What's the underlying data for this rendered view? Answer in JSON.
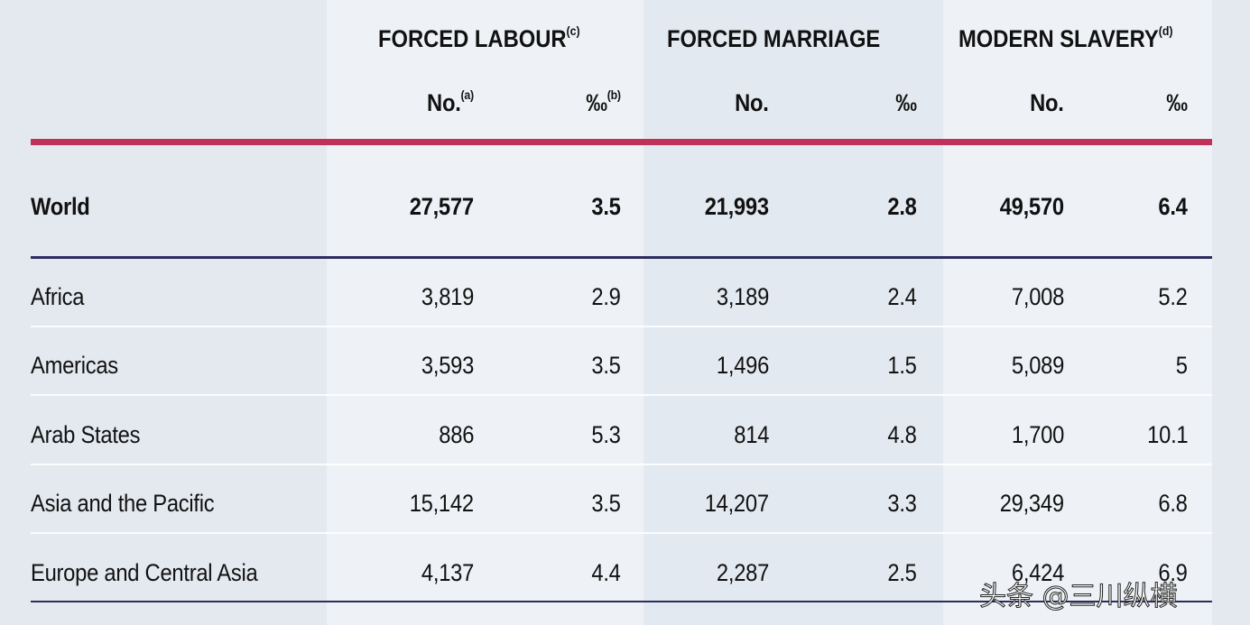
{
  "groups": [
    {
      "title": "FORCED LABOUR",
      "note": "(c)"
    },
    {
      "title": "FORCED MARRIAGE",
      "note": ""
    },
    {
      "title": "MODERN SLAVERY",
      "note": "(d)"
    }
  ],
  "subheaders": [
    {
      "label": "No.",
      "note": "(a)"
    },
    {
      "label": "‰",
      "note": "(b)"
    },
    {
      "label": "No.",
      "note": ""
    },
    {
      "label": "‰",
      "note": ""
    },
    {
      "label": "No.",
      "note": ""
    },
    {
      "label": "‰",
      "note": ""
    }
  ],
  "world": {
    "region": "World",
    "values": [
      "27,577",
      "3.5",
      "21,993",
      "2.8",
      "49,570",
      "6.4"
    ]
  },
  "rows": [
    {
      "region": "Africa",
      "values": [
        "3,819",
        "2.9",
        "3,189",
        "2.4",
        "7,008",
        "5.2"
      ]
    },
    {
      "region": "Americas",
      "values": [
        "3,593",
        "3.5",
        "1,496",
        "1.5",
        "5,089",
        "5"
      ]
    },
    {
      "region": "Arab States",
      "values": [
        "886",
        "5.3",
        "814",
        "4.8",
        "1,700",
        "10.1"
      ]
    },
    {
      "region": "Asia and the Pacific",
      "values": [
        "15,142",
        "3.5",
        "14,207",
        "3.3",
        "29,349",
        "6.8"
      ]
    },
    {
      "region": "Europe and Central Asia",
      "values": [
        "4,137",
        "4.4",
        "2,287",
        "2.5",
        "6,424",
        "6.9"
      ]
    }
  ],
  "watermark": "头条 @三川纵横",
  "colors": {
    "header_rule": "#c0315a",
    "rule": "#2c2c5e"
  }
}
